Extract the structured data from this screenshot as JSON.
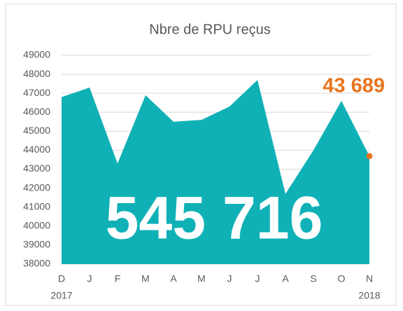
{
  "chart_data": {
    "type": "area",
    "title": "Nbre de RPU reçus",
    "categories": [
      "D",
      "J",
      "F",
      "M",
      "A",
      "M",
      "J",
      "J",
      "A",
      "S",
      "O",
      "N"
    ],
    "year_labels": [
      "2017",
      "2018"
    ],
    "values": [
      46800,
      47300,
      43300,
      46900,
      45500,
      45600,
      46300,
      47700,
      41700,
      44000,
      46600,
      43689
    ],
    "value_labels": [
      null,
      null,
      null,
      null,
      null,
      null,
      null,
      null,
      null,
      null,
      null,
      "43 689"
    ],
    "color": "#0fb1b6",
    "highlight_color": "#e8741e",
    "annotation": "545 716",
    "ylim": [
      38000,
      49000
    ],
    "yticks": [
      38000,
      39000,
      40000,
      41000,
      42000,
      43000,
      44000,
      45000,
      46000,
      47000,
      48000,
      49000
    ],
    "grid": true
  }
}
